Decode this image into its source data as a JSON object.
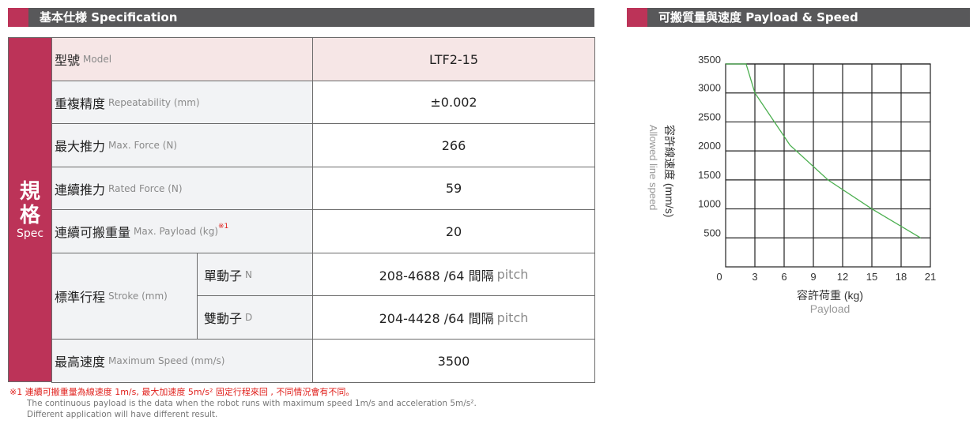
{
  "spec_header": {
    "title": "基本仕様 Specification"
  },
  "chart_header": {
    "title": "可搬質量與速度  Payload & Speed"
  },
  "table": {
    "group_label_zh1": "規",
    "group_label_zh2": "格",
    "group_label_en": "Spec",
    "rows": [
      {
        "zh": "型號",
        "en": "Model",
        "value": "LTF2-15"
      },
      {
        "zh": "重複精度",
        "en": "Repeatability (mm)",
        "value": "±0.002"
      },
      {
        "zh": "最大推力",
        "en": "Max. Force (N)",
        "value": "266"
      },
      {
        "zh": "連續推力",
        "en": "Rated Force (N)",
        "value": "59"
      },
      {
        "zh": "連續可搬重量",
        "en": "Max. Payload (kg)",
        "sup": "※1",
        "value": "20"
      },
      {
        "zh": "最高速度",
        "en": "Maximum Speed (mm/s)",
        "value": "3500"
      }
    ],
    "stroke": {
      "zh": "標準行程",
      "en": "Stroke (mm)",
      "sub": [
        {
          "zh": "單動子",
          "en": "N",
          "value": "208-4688 /64 間隔",
          "unit": "pitch"
        },
        {
          "zh": "雙動子",
          "en": "D",
          "value": "204-4428 /64 間隔",
          "unit": "pitch"
        }
      ]
    }
  },
  "notes": {
    "line1": "※1 連續可搬重量為線速度 1m/s, 最大加速度 5m/s² 固定行程來回 , 不同情況會有不同。",
    "line2": "The continuous payload is the data when the robot runs with maximum speed 1m/s and acceleration 5m/s².",
    "line3": "Different application will have different result."
  },
  "colors": {
    "accent": "#bc3358",
    "header": "#58585a",
    "model_row": "#f6e6e6",
    "label_bg": "#f2f3f5",
    "line": "#4caf50"
  },
  "chart_data": {
    "type": "line",
    "xlabel": "容許荷重 (kg)",
    "xlabel_en": "Payload",
    "ylabel": "容許線速度 (mm/s)",
    "ylabel_en": "Allowed line speed",
    "xlim": [
      0,
      21
    ],
    "ylim": [
      0,
      3500
    ],
    "grid": true,
    "x_ticks": [
      "0",
      "3",
      "6",
      "9",
      "12",
      "15",
      "18",
      "21"
    ],
    "y_ticks": [
      "500",
      "1000",
      "1500",
      "2000",
      "2500",
      "3000",
      "3500"
    ],
    "x": [
      0,
      2.1,
      3,
      6,
      6.6,
      10.5,
      15,
      20
    ],
    "y": [
      3500,
      3500,
      3000,
      2250,
      2100,
      1500,
      1000,
      500
    ]
  }
}
